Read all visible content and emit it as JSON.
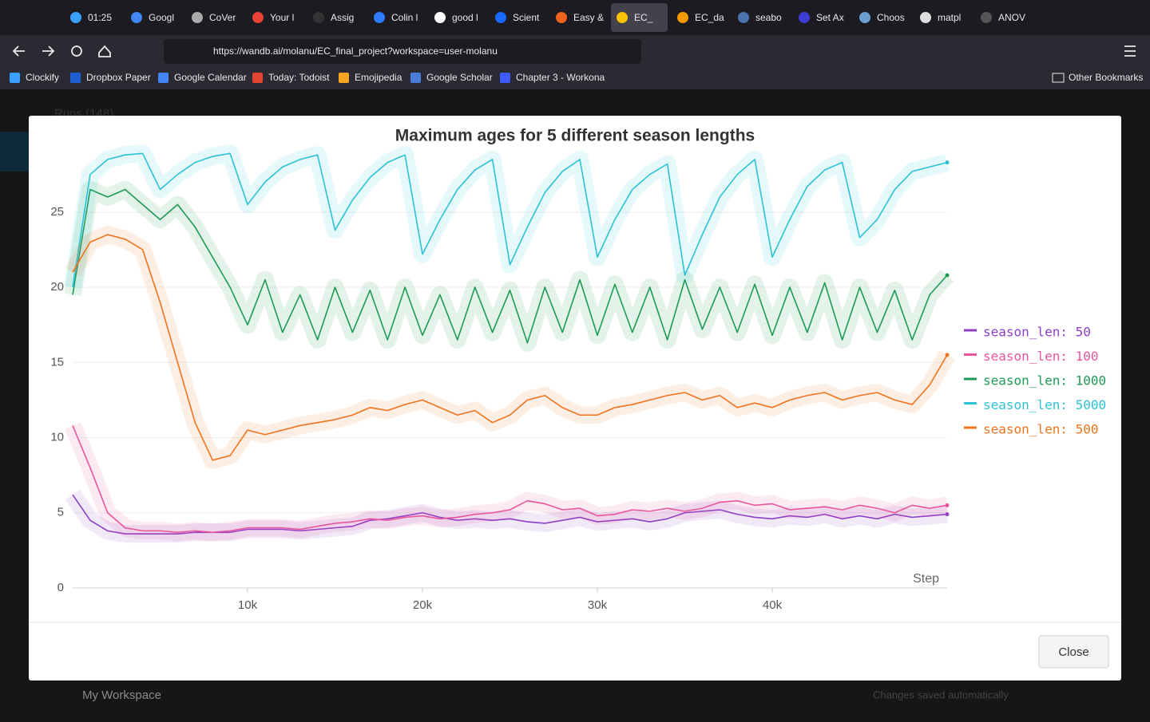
{
  "browser": {
    "tabs": [
      "01:25",
      "Googl",
      "CoVer",
      "Your l",
      "Assig",
      "Colin l",
      "good l",
      "Scient",
      "Easy &",
      "EC_",
      "EC_da",
      "seabo",
      "Set Ax",
      "Choos",
      "matpl",
      "ANOV"
    ],
    "url": "https://wandb.ai/molanu/EC_final_project?workspace=user-molanu",
    "bookmarks": [
      "Clockify",
      "Dropbox Paper",
      "Google Calendar",
      "Today: Todoist",
      "Emojipedia",
      "Google Scholar",
      "Chapter 3 - Workona"
    ],
    "other_bookmarks": "Other Bookmarks"
  },
  "page": {
    "runs": "Runs (148)",
    "workspace": "My Workspace",
    "status": "Changes saved automatically"
  },
  "modal": {
    "close": "Close"
  },
  "chart_data": {
    "type": "line",
    "title": "Maximum ages for 5 different season lengths",
    "x_label": "Step",
    "x": [
      0,
      1000,
      2000,
      3000,
      4000,
      5000,
      6000,
      7000,
      8000,
      9000,
      10000,
      11000,
      12000,
      13000,
      14000,
      15000,
      16000,
      17000,
      18000,
      19000,
      20000,
      21000,
      22000,
      23000,
      24000,
      25000,
      26000,
      27000,
      28000,
      29000,
      30000,
      31000,
      32000,
      33000,
      34000,
      35000,
      36000,
      37000,
      38000,
      39000,
      40000,
      41000,
      42000,
      43000,
      44000,
      45000,
      46000,
      47000,
      48000,
      49000,
      50000
    ],
    "xlim": [
      0,
      50000
    ],
    "xticks": [
      {
        "value": 10000,
        "label": "10k"
      },
      {
        "value": 20000,
        "label": "20k"
      },
      {
        "value": 30000,
        "label": "30k"
      },
      {
        "value": 40000,
        "label": "40k"
      }
    ],
    "ylim": [
      0,
      29.5
    ],
    "yticks": [
      0,
      5,
      10,
      15,
      20,
      25
    ],
    "grid": true,
    "legend": "right",
    "series": [
      {
        "name": "season_len: 50",
        "color": "#8e3fc9",
        "values": [
          6.2,
          4.5,
          3.8,
          3.6,
          3.6,
          3.6,
          3.6,
          3.7,
          3.7,
          3.7,
          3.9,
          3.9,
          3.9,
          3.8,
          3.9,
          4,
          4.1,
          4.5,
          4.6,
          4.8,
          5,
          4.7,
          4.5,
          4.6,
          4.5,
          4.6,
          4.4,
          4.3,
          4.5,
          4.7,
          4.4,
          4.5,
          4.6,
          4.4,
          4.6,
          5,
          5.1,
          5.2,
          4.9,
          4.7,
          4.6,
          4.8,
          4.7,
          4.9,
          4.6,
          4.8,
          4.6,
          4.9,
          4.7,
          4.8,
          4.9
        ]
      },
      {
        "name": "season_len: 100",
        "color": "#e8559c",
        "values": [
          10.8,
          8,
          5,
          4,
          3.8,
          3.8,
          3.7,
          3.8,
          3.7,
          3.8,
          4,
          4,
          4,
          3.9,
          4.1,
          4.3,
          4.4,
          4.6,
          4.5,
          4.7,
          4.8,
          4.6,
          4.7,
          4.9,
          5,
          5.2,
          5.8,
          5.6,
          5.2,
          5.3,
          4.8,
          4.9,
          5.2,
          5.1,
          5.3,
          5.1,
          5.3,
          5.7,
          5.8,
          5.5,
          5.6,
          5.2,
          5.3,
          5.4,
          5.2,
          5.5,
          5.3,
          5,
          5.5,
          5.3,
          5.5
        ]
      },
      {
        "name": "season_len: 1000",
        "color": "#1f9a55",
        "values": [
          19.5,
          26.5,
          26,
          26.5,
          25.5,
          24.5,
          25.5,
          24,
          22,
          20,
          17.5,
          20.5,
          17,
          19.5,
          16.5,
          20,
          17,
          19.8,
          16.5,
          20,
          16.8,
          19.5,
          16.5,
          20,
          17,
          19.8,
          16.3,
          20,
          17,
          20.5,
          16.8,
          20.2,
          17,
          20,
          16.5,
          20.5,
          17.2,
          20,
          17,
          20.2,
          16.8,
          20,
          17,
          20.3,
          16.5,
          20,
          17,
          19.8,
          16.5,
          19.5,
          20.8
        ]
      },
      {
        "name": "season_len: 5000",
        "color": "#2cc2d6",
        "values": [
          20,
          27.5,
          28.5,
          28.8,
          28.9,
          26.5,
          27.5,
          28.3,
          28.7,
          28.9,
          25.5,
          27,
          28,
          28.5,
          28.8,
          23.8,
          25.8,
          27.3,
          28.3,
          28.8,
          22.2,
          24.5,
          26.5,
          27.8,
          28.5,
          21.5,
          24,
          26.3,
          27.7,
          28.5,
          22,
          24.5,
          26.5,
          27.5,
          28.2,
          20.8,
          23.5,
          26,
          27.5,
          28.5,
          22,
          24.5,
          26.7,
          27.8,
          28.3,
          23.3,
          24.5,
          26.5,
          27.7,
          28,
          28.3
        ]
      },
      {
        "name": "season_len: 500",
        "color": "#f0731e",
        "values": [
          21,
          23,
          23.5,
          23.2,
          22.5,
          19,
          15,
          11,
          8.5,
          8.8,
          10.5,
          10.2,
          10.5,
          10.8,
          11,
          11.2,
          11.5,
          12,
          11.8,
          12.2,
          12.5,
          12,
          11.5,
          11.8,
          11,
          11.5,
          12.5,
          12.8,
          12,
          11.5,
          11.5,
          12,
          12.2,
          12.5,
          12.8,
          13,
          12.5,
          12.8,
          12,
          12.3,
          12,
          12.5,
          12.8,
          13,
          12.5,
          12.8,
          13,
          12.5,
          12.2,
          13.5,
          15.5
        ]
      }
    ]
  }
}
